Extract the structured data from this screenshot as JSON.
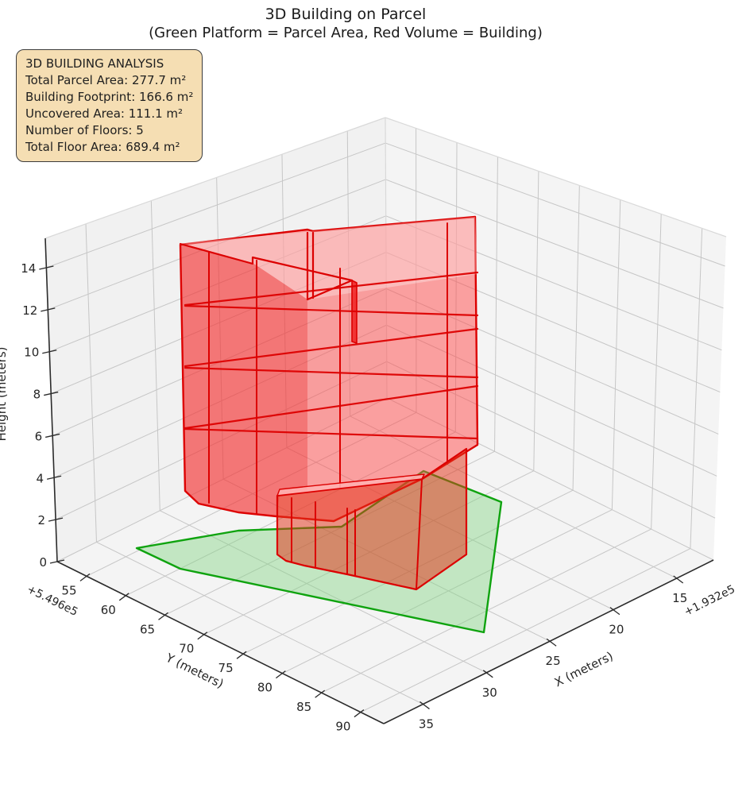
{
  "title": {
    "line1": "3D Building on Parcel",
    "line2": "(Green Platform = Parcel Area, Red Volume = Building)"
  },
  "info_box": {
    "lines": [
      "3D BUILDING ANALYSIS",
      "Total Parcel Area: 277.7 m²",
      "Building Footprint: 166.6 m²",
      "Uncovered Area: 111.1 m²",
      "Number of Floors: 5",
      "Total Floor Area: 689.4 m²"
    ]
  },
  "chart_data": {
    "type": "3d-building-on-parcel",
    "title": "3D Building on Parcel",
    "subtitle": "(Green Platform = Parcel Area, Red Volume = Building)",
    "axes": {
      "x": {
        "label": "X (meters)",
        "ticks": [
          15,
          20,
          25,
          30,
          35
        ],
        "offset_text": "+1.932e5",
        "range": [
          12.1,
          38.1
        ]
      },
      "y": {
        "label": "Y (meters)",
        "ticks": [
          55,
          60,
          65,
          70,
          75,
          80,
          85,
          90
        ],
        "offset_text": "+5.496e5",
        "range": [
          51.25,
          92.95
        ]
      },
      "z": {
        "label": "Height (meters)",
        "ticks": [
          0,
          2,
          4,
          6,
          8,
          10,
          12,
          14
        ],
        "range": [
          0,
          15.4
        ]
      }
    },
    "analysis": {
      "total_parcel_area_m2": 277.7,
      "building_footprint_m2": 166.6,
      "uncovered_area_m2": 111.1,
      "num_floors": 5,
      "total_floor_area_m2": 689.4,
      "floor_height_m": 3,
      "building_height_m": 15
    },
    "legend": {
      "parcel": "Green Platform = Parcel Area",
      "building": "Red Volume = Building"
    },
    "colors": {
      "building_fill": "#ff4a4a",
      "building_edge": "#dc0000",
      "parcel_fill": "#86d586",
      "parcel_edge": "#0fa30f",
      "pane": "#f2f2f2",
      "grid": "#c6c6c6",
      "spine": "#2b2b2b",
      "info_box_bg": "#f5deb3"
    }
  }
}
